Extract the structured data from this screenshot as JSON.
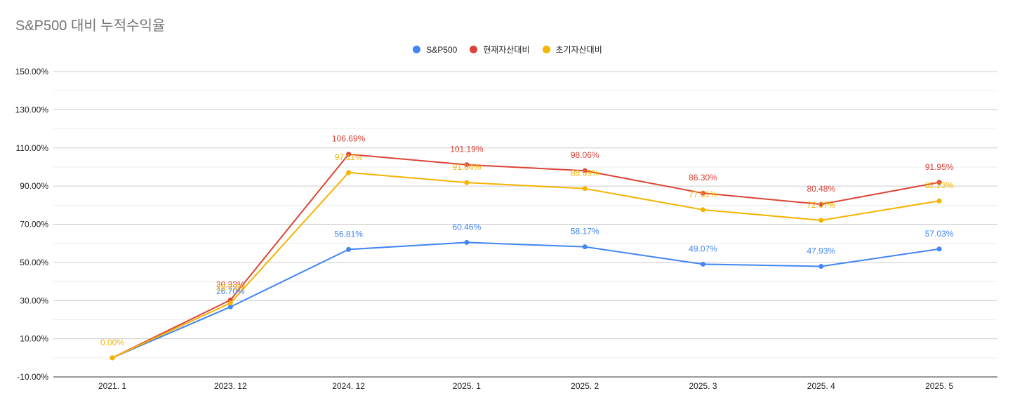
{
  "chart_data": {
    "type": "line",
    "title": "S&P500 대비 누적수익율",
    "categories": [
      "2021. 1",
      "2023. 12",
      "2024. 12",
      "2025. 1",
      "2025. 2",
      "2025. 3",
      "2025. 4",
      "2025. 5"
    ],
    "ylim": [
      -10,
      150
    ],
    "yticks": [
      "150.00%",
      "130.00%",
      "110.00%",
      "90.00%",
      "70.00%",
      "50.00%",
      "30.00%",
      "10.00%",
      "-10.00%"
    ],
    "ytick_values": [
      150,
      130,
      110,
      90,
      70,
      50,
      30,
      10,
      -10
    ],
    "grid": true,
    "legend_position": "top-center",
    "series": [
      {
        "name": "S&P500",
        "color": "#4285f4",
        "values": [
          0,
          26.7,
          56.81,
          60.46,
          58.17,
          49.07,
          47.93,
          57.03
        ],
        "labels": [
          "",
          "26.70%",
          "56.81%",
          "60.46%",
          "58.17%",
          "49.07%",
          "47.93%",
          "57.03%"
        ]
      },
      {
        "name": "현재자산대비",
        "color": "#db4437",
        "values": [
          0,
          30.33,
          106.69,
          101.19,
          98.06,
          86.3,
          80.48,
          91.95
        ],
        "labels": [
          "",
          "30.33%",
          "106.69%",
          "101.19%",
          "98.06%",
          "86.30%",
          "80.48%",
          "91.95%"
        ]
      },
      {
        "name": "초기자산대비",
        "color": "#f4b400",
        "values": [
          0,
          28.73,
          97.11,
          91.84,
          88.69,
          77.61,
          72.07,
          82.23
        ],
        "labels": [
          "0.00%",
          "28.73%",
          "97.11%",
          "91.84%",
          "88.69%",
          "77.61%",
          "72.07%",
          "82.23%"
        ]
      }
    ]
  }
}
